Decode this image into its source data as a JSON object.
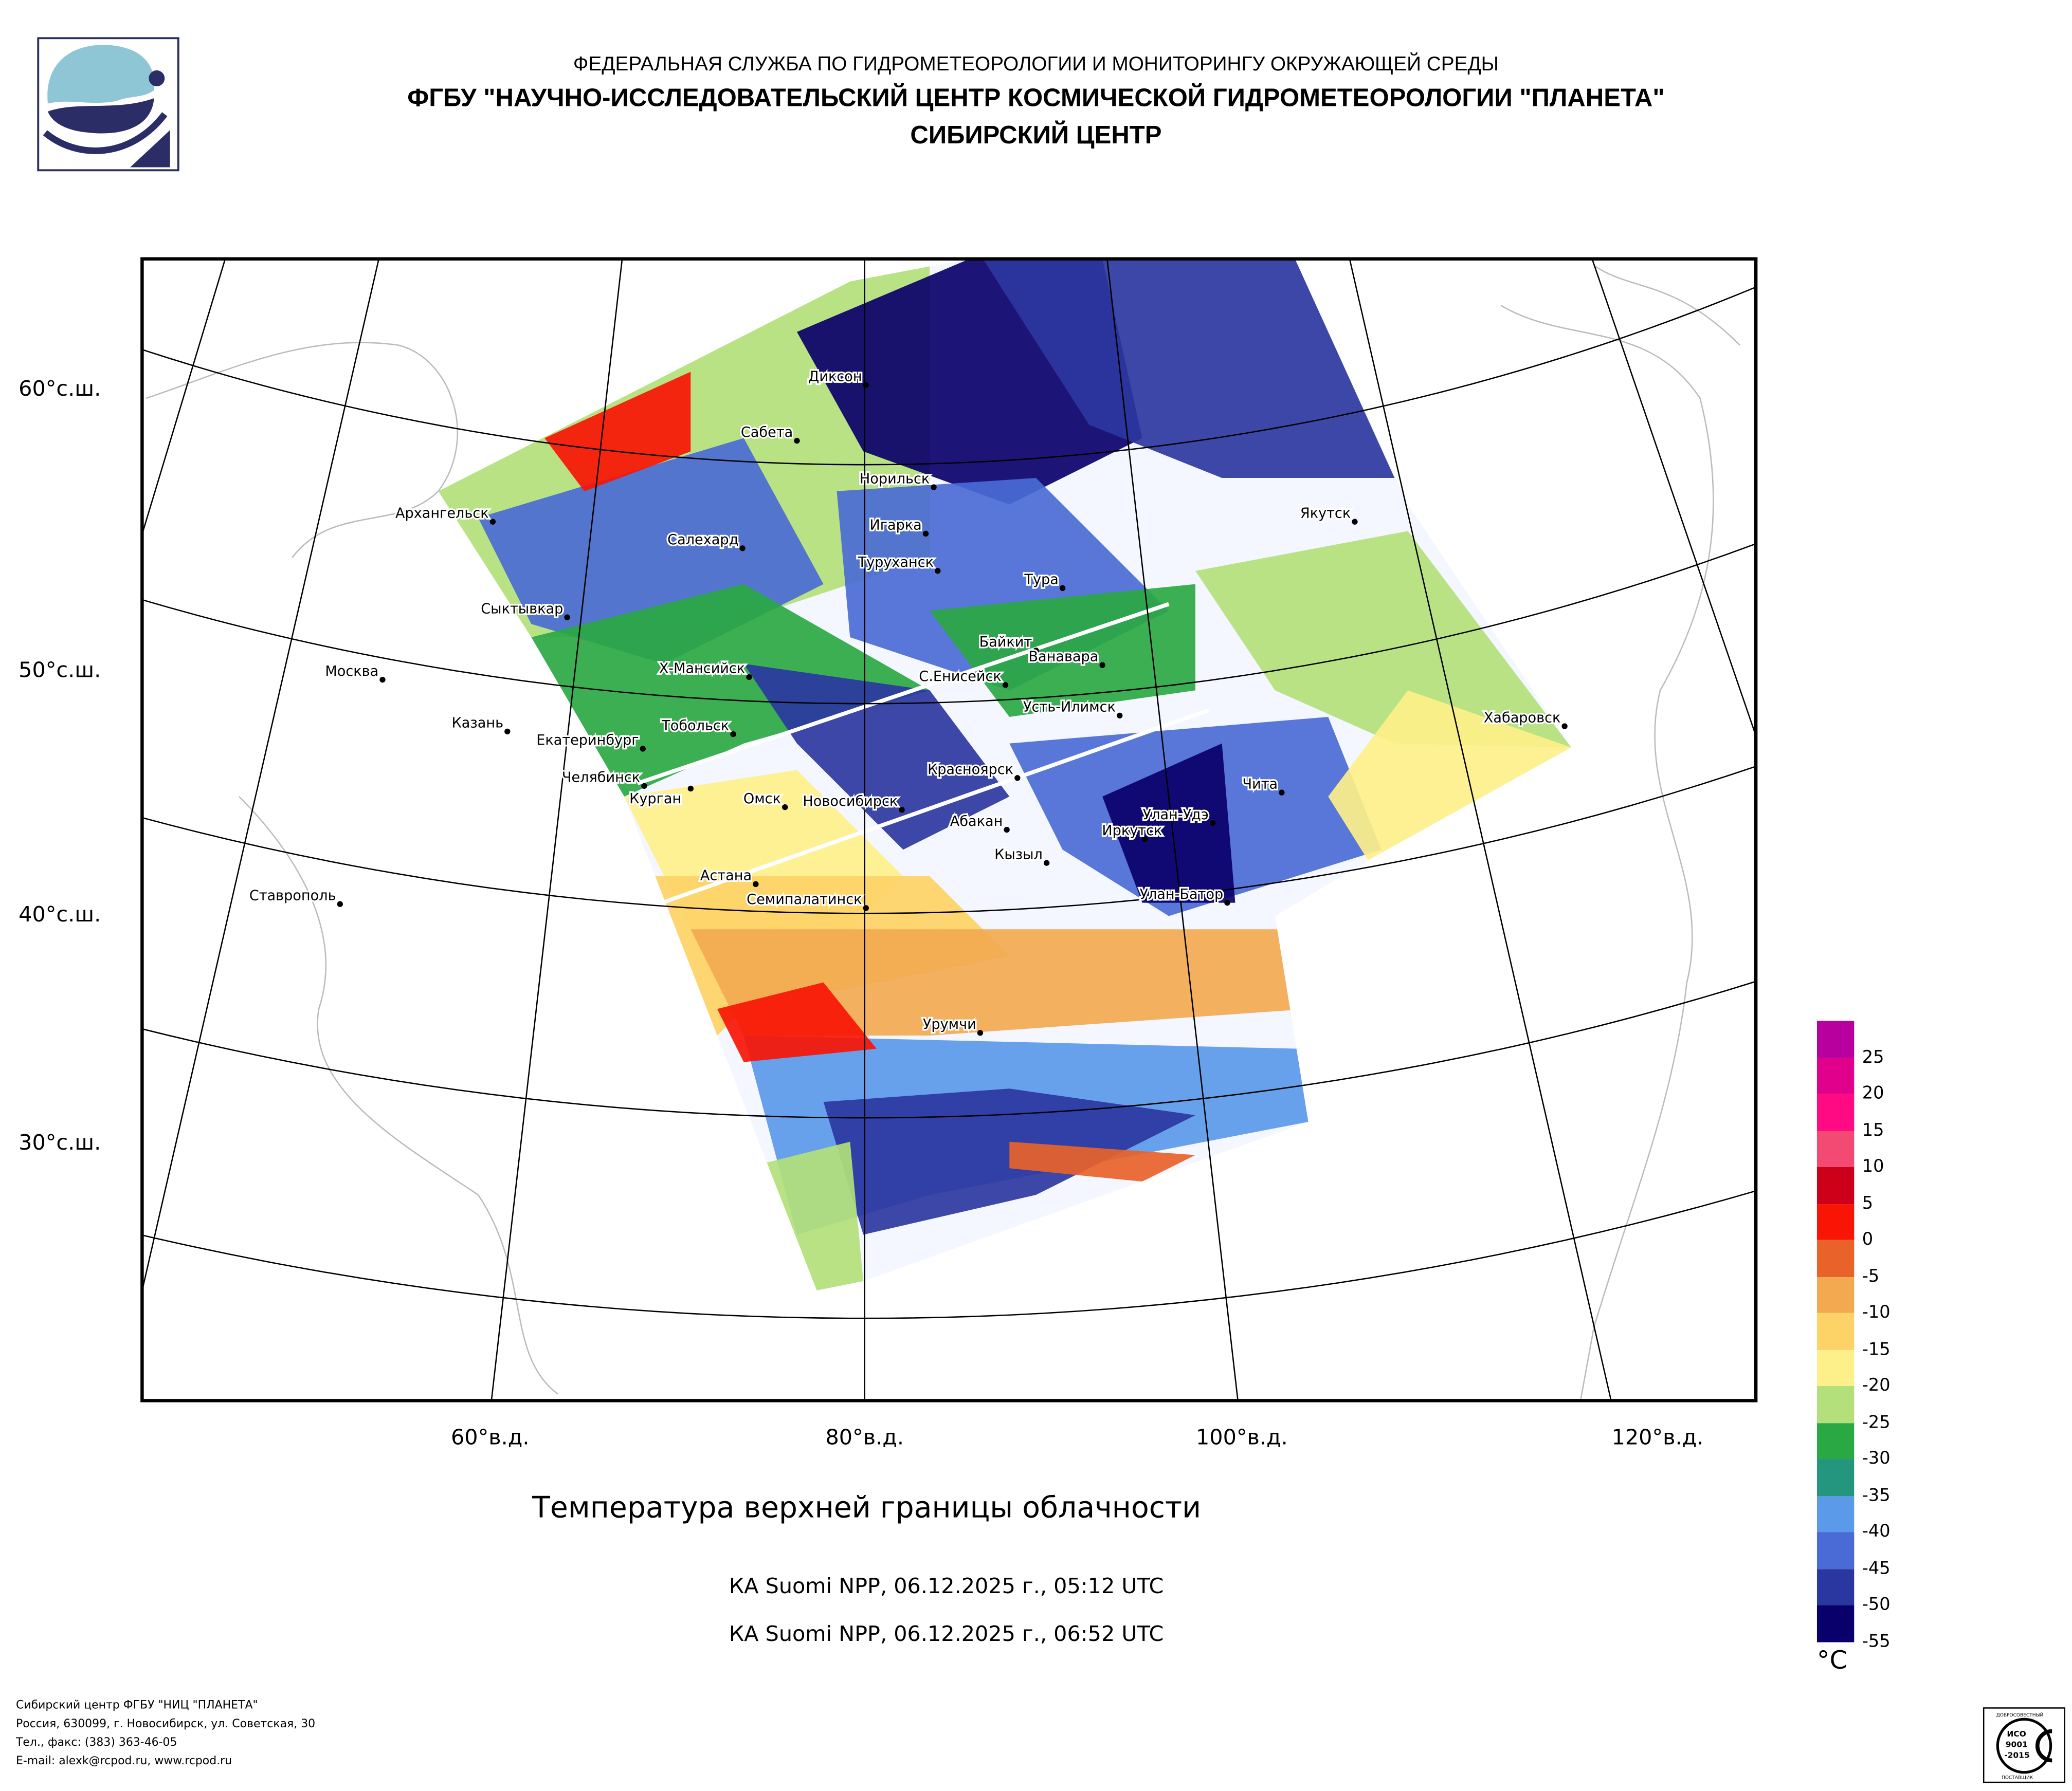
{
  "header": {
    "line1": "ФЕДЕРАЛЬНАЯ СЛУЖБА ПО ГИДРОМЕТЕОРОЛОГИИ И МОНИТОРИНГУ ОКРУЖАЮЩЕЙ СРЕДЫ",
    "line2": "ФГБУ \"НАУЧНО-ИССЛЕДОВАТЕЛЬСКИЙ ЦЕНТР КОСМИЧЕСКОЙ ГИДРОМЕТЕОРОЛОГИИ \"ПЛАНЕТА\"",
    "line3": "СИБИРСКИЙ ЦЕНТР"
  },
  "map": {
    "lat_labels": [
      "60°с.ш.",
      "50°с.ш.",
      "40°с.ш.",
      "30°с.ш."
    ],
    "lon_labels": [
      "60°в.д.",
      "80°в.д.",
      "100°в.д.",
      "120°в.д."
    ],
    "cities": [
      "Диксон",
      "Сабета",
      "Норильск",
      "Архангельск",
      "Якутск",
      "Салехард",
      "Игарка",
      "Туруханск",
      "Тура",
      "Сыктывкар",
      "Байкит",
      "Ванавара",
      "Москва",
      "Х-Мансийск",
      "С.Енисейск",
      "Усть-Илимск",
      "Хабаровск",
      "Казань",
      "Тобольск",
      "Екатеринбург",
      "Красноярск",
      "Челябинск",
      "Курган",
      "Чита",
      "Омск",
      "Новосибирск",
      "Улан-Удэ",
      "Абакан",
      "Иркутск",
      "Кызыл",
      "Ставрополь",
      "Астана",
      "Семипалатинск",
      "Улан-Батор",
      "Урумчи"
    ]
  },
  "product": {
    "title": "Температура верхней границы облачности",
    "pass1": "КА Suomi NPP, 06.12.2025 г., 05:12 UTC",
    "pass2": "КА Suomi NPP, 06.12.2025 г., 06:52 UTC"
  },
  "colorbar": {
    "unit": "°C",
    "labels": [
      "25",
      "20",
      "15",
      "10",
      "5",
      "0",
      "-5",
      "-10",
      "-15",
      "-20",
      "-25",
      "-30",
      "-35",
      "-40",
      "-45",
      "-50",
      "-55"
    ],
    "colors": [
      "#b8009e",
      "#e0008c",
      "#ff0a82",
      "#f24a72",
      "#cc0019",
      "#f81505",
      "#e8622a",
      "#f2a950",
      "#fdd266",
      "#fdf08a",
      "#b3e07a",
      "#2aa843",
      "#25967e",
      "#5b99e9",
      "#4a6bd5",
      "#2b37a0",
      "#0a006b"
    ]
  },
  "footer": {
    "line1": "Сибирский центр ФГБУ \"НИЦ \"ПЛАНЕТА\"",
    "line2": "Россия, 630099, г. Новосибирск, ул. Советская, 30",
    "line3": "Тел., факс: (383) 363-46-05",
    "line4": "E-mail: alexk@rcpod.ru, www.rcpod.ru"
  },
  "iso_badge": {
    "text": "ИСО 9001 -2015",
    "top": "ДОБРОСОВЕСТНЫЙ",
    "bottom": "ПОСТАВЩИК"
  }
}
